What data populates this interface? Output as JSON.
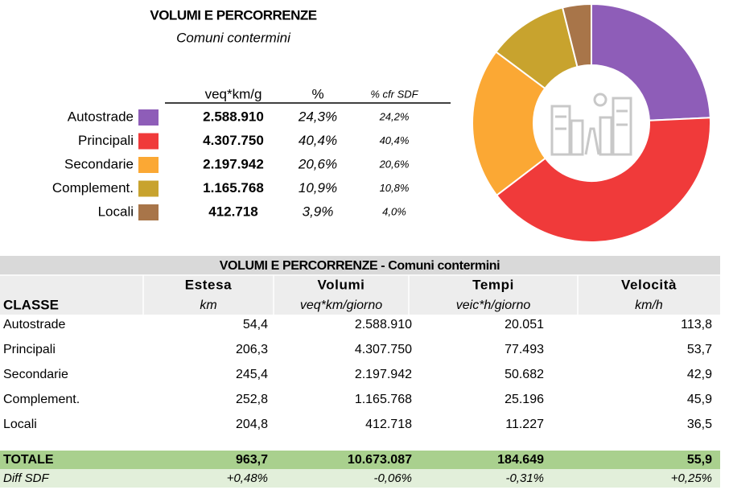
{
  "chart_data": {
    "type": "pie",
    "title": "VOLUMI E PERCORRENZE",
    "subtitle": "Comuni contermini",
    "column_headers": [
      "veq*km/g",
      "%",
      "% cfr SDF"
    ],
    "categories": [
      "Autostrade",
      "Principali",
      "Secondarie",
      "Complement.",
      "Locali"
    ],
    "colors": [
      "#8e5db8",
      "#f03a3a",
      "#fba834",
      "#c8a32e",
      "#a87549"
    ],
    "volumes": [
      "2.588.910",
      "4.307.750",
      "2.197.942",
      "1.165.768",
      "412.718"
    ],
    "values": [
      24.3,
      40.4,
      20.6,
      10.9,
      3.9
    ],
    "value_labels": [
      "24,3%",
      "40,4%",
      "20,6%",
      "10,9%",
      "3,9%"
    ],
    "sdf_labels": [
      "24,2%",
      "40,4%",
      "20,6%",
      "10,8%",
      "4,0%"
    ]
  },
  "table": {
    "title": "VOLUMI E PERCORRENZE - Comuni contermini",
    "columns": [
      "Estesa",
      "Volumi",
      "Tempi",
      "Velocità"
    ],
    "units": {
      "label": "CLASSE",
      "values": [
        "km",
        "veq*km/giorno",
        "veic*h/giorno",
        "km/h"
      ]
    },
    "rows": [
      {
        "name": "Autostrade",
        "values": [
          "54,4",
          "2.588.910",
          "20.051",
          "113,8"
        ]
      },
      {
        "name": "Principali",
        "values": [
          "206,3",
          "4.307.750",
          "77.493",
          "53,7"
        ]
      },
      {
        "name": "Secondarie",
        "values": [
          "245,4",
          "2.197.942",
          "50.682",
          "42,9"
        ]
      },
      {
        "name": "Complement.",
        "values": [
          "252,8",
          "1.165.768",
          "25.196",
          "45,9"
        ]
      },
      {
        "name": "Locali",
        "values": [
          "204,8",
          "412.718",
          "11.227",
          "36,5"
        ]
      }
    ],
    "total": {
      "name": "TOTALE",
      "values": [
        "963,7",
        "10.673.087",
        "184.649",
        "55,9"
      ]
    },
    "diff": {
      "name": "Diff SDF",
      "values": [
        "+0,48%",
        "-0,06%",
        "-0,31%",
        "+0,25%"
      ]
    }
  }
}
